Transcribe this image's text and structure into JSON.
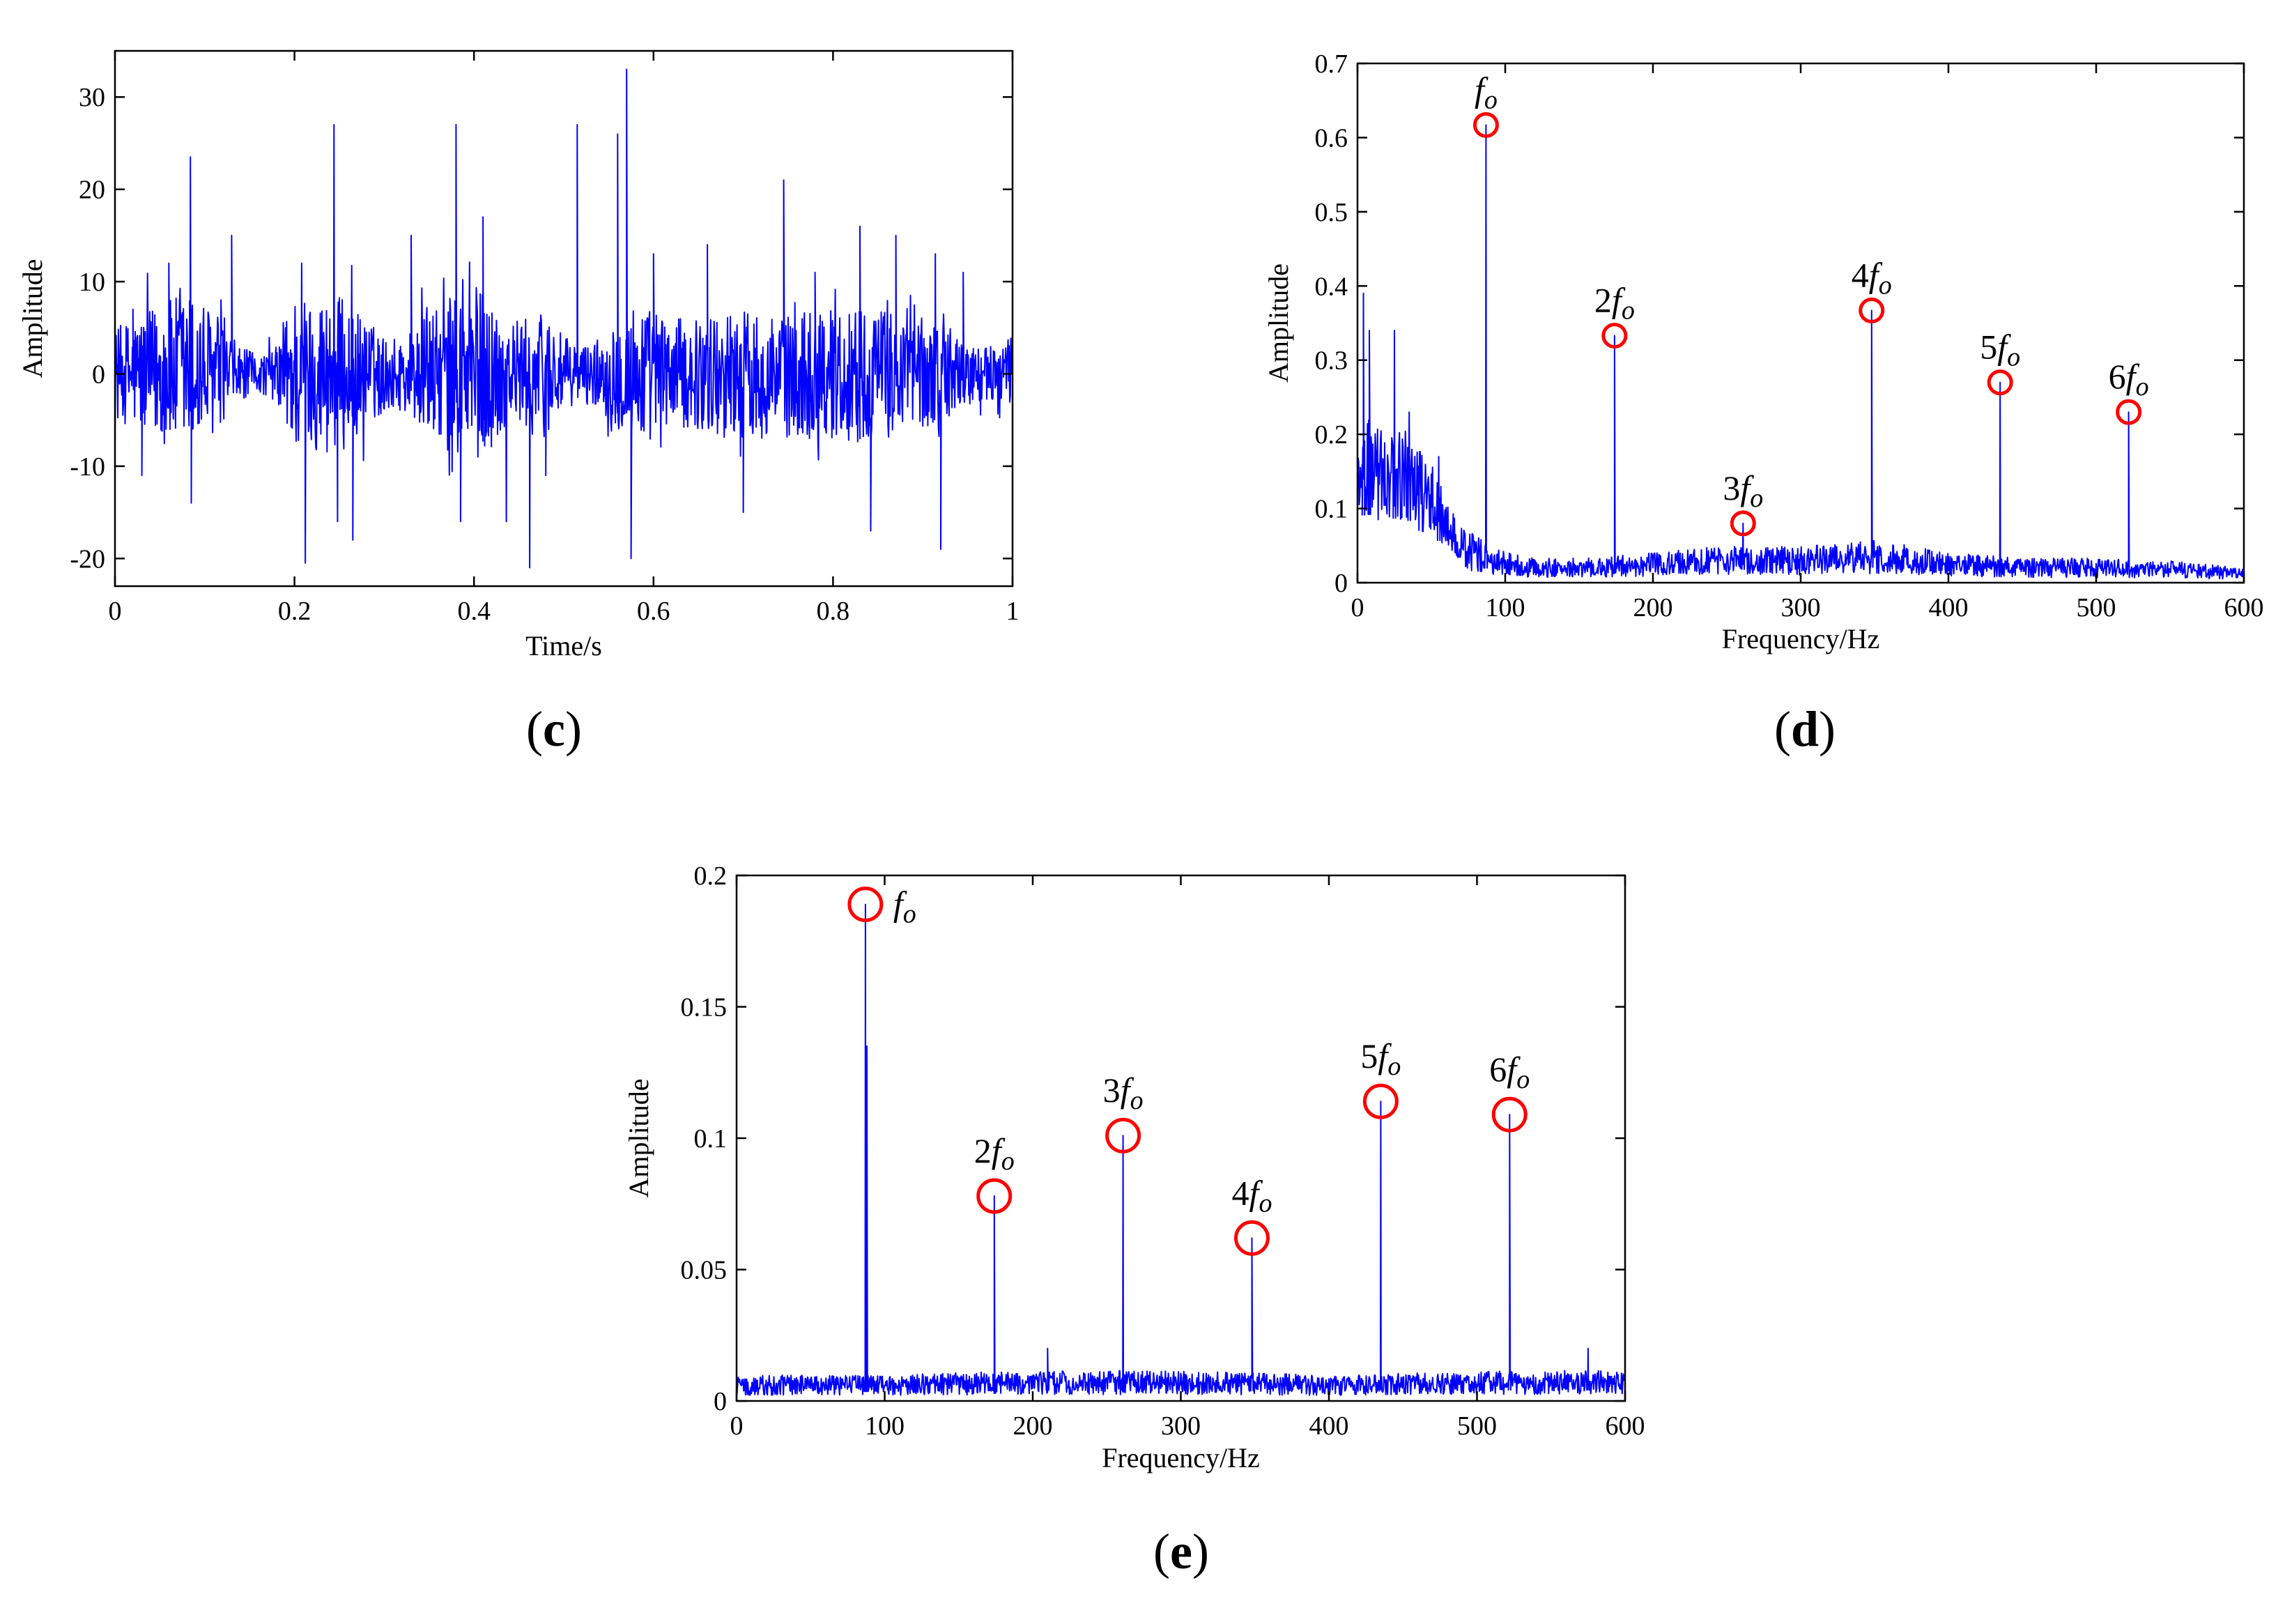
{
  "figure": {
    "panels": [
      {
        "id": "c",
        "label": "c"
      },
      {
        "id": "d",
        "label": "d"
      },
      {
        "id": "e",
        "label": "e"
      }
    ]
  },
  "chart_data": [
    {
      "id": "c",
      "panel_label": "c",
      "type": "line",
      "title": "",
      "xlabel": "Time/s",
      "ylabel": "Amplitude",
      "xlim": [
        0,
        1
      ],
      "ylim": [
        -23,
        35
      ],
      "xticks": [
        0,
        0.2,
        0.4,
        0.6,
        0.8,
        1
      ],
      "xtick_labels": [
        "0",
        "0.2",
        "0.4",
        "0.6",
        "0.8",
        "1"
      ],
      "yticks": [
        -20,
        -10,
        0,
        10,
        20,
        30
      ],
      "ytick_labels": [
        "-20",
        "-10",
        "0",
        "10",
        "20",
        "30"
      ],
      "color": "#0000ff",
      "grid": false,
      "envelope": {
        "x": [
          0,
          0.02,
          0.04,
          0.06,
          0.08,
          0.1,
          0.12,
          0.14,
          0.16,
          0.18,
          0.2,
          0.22,
          0.24,
          0.26,
          0.28,
          0.3,
          0.32,
          0.34,
          0.36,
          0.38,
          0.4,
          0.42,
          0.44,
          0.46,
          0.48,
          0.5,
          0.52,
          0.54,
          0.56,
          0.58,
          0.6,
          0.62,
          0.64,
          0.66,
          0.68,
          0.7,
          0.72,
          0.74,
          0.76,
          0.78,
          0.8,
          0.82,
          0.84,
          0.86,
          0.88,
          0.9,
          0.92,
          0.94,
          0.96,
          0.98,
          1.0
        ],
        "amplitude": [
          5,
          6,
          7,
          8,
          9,
          8,
          5,
          3,
          2,
          3,
          9,
          8,
          9,
          8,
          6,
          4,
          4,
          6,
          7,
          9,
          10,
          8,
          6,
          6,
          7,
          4,
          3,
          4,
          6,
          8,
          7,
          6,
          6,
          6,
          7,
          7,
          7,
          6,
          8,
          7,
          7,
          8,
          7,
          7,
          6,
          6,
          6,
          4,
          3,
          3,
          4
        ]
      },
      "peaks": [
        {
          "x": 0.02,
          "y": 7
        },
        {
          "x": 0.03,
          "y": -11
        },
        {
          "x": 0.06,
          "y": 12
        },
        {
          "x": 0.084,
          "y": 23.5
        },
        {
          "x": 0.085,
          "y": -14
        },
        {
          "x": 0.13,
          "y": 15
        },
        {
          "x": 0.208,
          "y": 12
        },
        {
          "x": 0.212,
          "y": -20.5
        },
        {
          "x": 0.244,
          "y": 27
        },
        {
          "x": 0.248,
          "y": -16
        },
        {
          "x": 0.265,
          "y": -18
        },
        {
          "x": 0.33,
          "y": 15
        },
        {
          "x": 0.38,
          "y": 27
        },
        {
          "x": 0.385,
          "y": -16
        },
        {
          "x": 0.41,
          "y": 17
        },
        {
          "x": 0.436,
          "y": -16
        },
        {
          "x": 0.462,
          "y": -21
        },
        {
          "x": 0.48,
          "y": -11
        },
        {
          "x": 0.515,
          "y": 27
        },
        {
          "x": 0.56,
          "y": 26
        },
        {
          "x": 0.57,
          "y": 33
        },
        {
          "x": 0.575,
          "y": -20
        },
        {
          "x": 0.6,
          "y": 13
        },
        {
          "x": 0.66,
          "y": 14
        },
        {
          "x": 0.7,
          "y": -15
        },
        {
          "x": 0.745,
          "y": 21
        },
        {
          "x": 0.78,
          "y": 11
        },
        {
          "x": 0.83,
          "y": 16
        },
        {
          "x": 0.842,
          "y": -17
        },
        {
          "x": 0.87,
          "y": 15
        },
        {
          "x": 0.914,
          "y": 13
        },
        {
          "x": 0.92,
          "y": -19
        },
        {
          "x": 0.945,
          "y": 11
        }
      ]
    },
    {
      "id": "d",
      "panel_label": "d",
      "type": "line",
      "title": "",
      "xlabel": "Frequency/Hz",
      "ylabel": "Amplitude",
      "xlim": [
        0,
        600
      ],
      "ylim": [
        0,
        0.7
      ],
      "xticks": [
        0,
        100,
        200,
        300,
        400,
        500,
        600
      ],
      "xtick_labels": [
        "0",
        "100",
        "200",
        "300",
        "400",
        "500",
        "600"
      ],
      "yticks": [
        0,
        0.1,
        0.2,
        0.3,
        0.4,
        0.5,
        0.6,
        0.7
      ],
      "ytick_labels": [
        "0",
        "0.1",
        "0.2",
        "0.3",
        "0.4",
        "0.5",
        "0.6",
        "0.7"
      ],
      "color": "#0000ff",
      "marker_color": "#ff0000",
      "grid": false,
      "baseline": {
        "x": [
          0,
          5,
          10,
          20,
          30,
          40,
          50,
          60,
          70,
          80,
          90,
          100,
          120,
          150,
          200,
          250,
          300,
          350,
          400,
          450,
          500,
          550,
          600
        ],
        "y": [
          0.12,
          0.16,
          0.15,
          0.14,
          0.15,
          0.13,
          0.11,
          0.08,
          0.05,
          0.04,
          0.03,
          0.025,
          0.02,
          0.02,
          0.025,
          0.03,
          0.03,
          0.035,
          0.025,
          0.02,
          0.02,
          0.018,
          0.012
        ]
      },
      "spikes": [
        {
          "x": 4,
          "y": 0.39
        },
        {
          "x": 8,
          "y": 0.34
        },
        {
          "x": 25,
          "y": 0.34
        },
        {
          "x": 35,
          "y": 0.23
        },
        {
          "x": 55,
          "y": 0.17
        }
      ],
      "harmonics": [
        {
          "x": 87,
          "y": 0.617,
          "label_num": "",
          "label_f": "f",
          "label_sub": "o"
        },
        {
          "x": 174,
          "y": 0.333,
          "label_num": "2",
          "label_f": "f",
          "label_sub": "o"
        },
        {
          "x": 261,
          "y": 0.08,
          "label_num": "3",
          "label_f": "f",
          "label_sub": "o"
        },
        {
          "x": 348,
          "y": 0.367,
          "label_num": "4",
          "label_f": "f",
          "label_sub": "o"
        },
        {
          "x": 435,
          "y": 0.27,
          "label_num": "5",
          "label_f": "f",
          "label_sub": "o"
        },
        {
          "x": 522,
          "y": 0.23,
          "label_num": "6",
          "label_f": "f",
          "label_sub": "o"
        }
      ]
    },
    {
      "id": "e",
      "panel_label": "e",
      "type": "line",
      "title": "",
      "xlabel": "Frequency/Hz",
      "ylabel": "Amplitude",
      "xlim": [
        0,
        600
      ],
      "ylim": [
        0,
        0.2
      ],
      "xticks": [
        0,
        100,
        200,
        300,
        400,
        500,
        600
      ],
      "xtick_labels": [
        "0",
        "100",
        "200",
        "300",
        "400",
        "500",
        "600"
      ],
      "yticks": [
        0,
        0.05,
        0.1,
        0.15,
        0.2
      ],
      "ytick_labels": [
        "0",
        "0.05",
        "0.1",
        "0.15",
        "0.2"
      ],
      "color": "#0000ff",
      "marker_color": "#ff0000",
      "grid": false,
      "baseline": {
        "x": [
          0,
          100,
          200,
          300,
          400,
          500,
          600
        ],
        "y": [
          0.006,
          0.006,
          0.007,
          0.007,
          0.006,
          0.007,
          0.007
        ]
      },
      "spikes": [
        {
          "x": 88,
          "y": 0.135
        },
        {
          "x": 210,
          "y": 0.02
        },
        {
          "x": 575,
          "y": 0.02
        }
      ],
      "harmonics": [
        {
          "x": 87,
          "y": 0.189,
          "label_num": "",
          "label_f": "f",
          "label_sub": "o"
        },
        {
          "x": 174,
          "y": 0.078,
          "label_num": "2",
          "label_f": "f",
          "label_sub": "o"
        },
        {
          "x": 261,
          "y": 0.101,
          "label_num": "3",
          "label_f": "f",
          "label_sub": "o"
        },
        {
          "x": 348,
          "y": 0.062,
          "label_num": "4",
          "label_f": "f",
          "label_sub": "o"
        },
        {
          "x": 435,
          "y": 0.114,
          "label_num": "5",
          "label_f": "f",
          "label_sub": "o"
        },
        {
          "x": 522,
          "y": 0.109,
          "label_num": "6",
          "label_f": "f",
          "label_sub": "o"
        }
      ]
    }
  ]
}
